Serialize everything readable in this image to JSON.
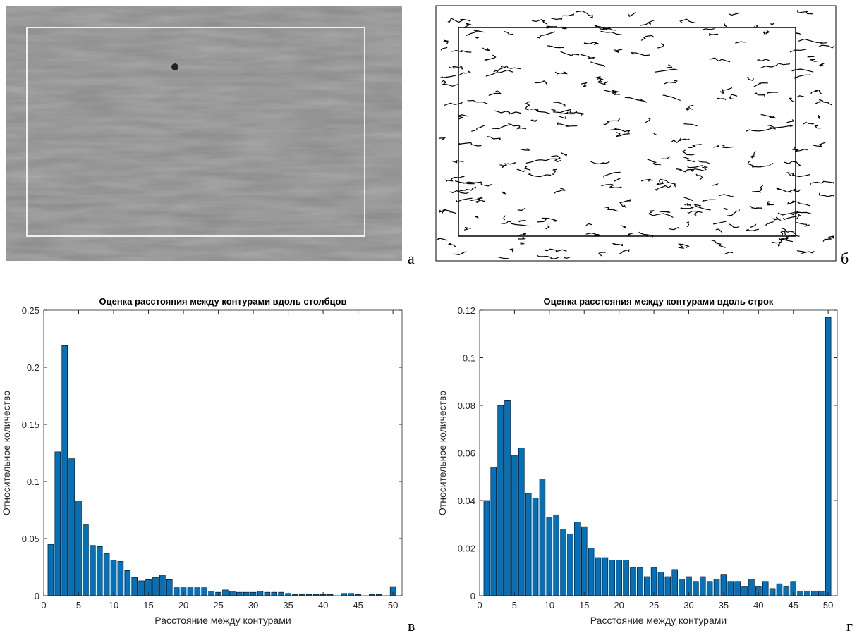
{
  "panel_labels": [
    "а",
    "б",
    "в",
    "г"
  ],
  "chart_data": [
    {
      "type": "bar",
      "title": "Оценка расстояния между контурами вдоль столбцов",
      "xlabel": "Расстояние между контурами",
      "ylabel": "Относительное количество",
      "color": "#0072bd",
      "x": [
        1,
        2,
        3,
        4,
        5,
        6,
        7,
        8,
        9,
        10,
        11,
        12,
        13,
        14,
        15,
        16,
        17,
        18,
        19,
        20,
        21,
        22,
        23,
        24,
        25,
        26,
        27,
        28,
        29,
        30,
        31,
        32,
        33,
        34,
        35,
        36,
        37,
        38,
        39,
        40,
        41,
        42,
        43,
        44,
        45,
        46,
        47,
        48,
        49,
        50
      ],
      "values": [
        0.045,
        0.126,
        0.219,
        0.12,
        0.083,
        0.062,
        0.044,
        0.043,
        0.037,
        0.031,
        0.03,
        0.022,
        0.016,
        0.013,
        0.014,
        0.016,
        0.018,
        0.014,
        0.007,
        0.007,
        0.007,
        0.007,
        0.007,
        0.004,
        0.003,
        0.005,
        0.004,
        0.003,
        0.003,
        0.003,
        0.004,
        0.003,
        0.003,
        0.003,
        0.002,
        0.001,
        0.001,
        0.001,
        0.001,
        0.001,
        0.001,
        0,
        0.002,
        0.002,
        0.001,
        0,
        0.001,
        0.001,
        0,
        0.008
      ],
      "xlim": [
        0,
        51.3
      ],
      "xticks": [
        0,
        5,
        10,
        15,
        20,
        25,
        30,
        35,
        40,
        45,
        50
      ],
      "ylim": [
        0,
        0.25
      ],
      "yticks": [
        0,
        0.05,
        0.1,
        0.15,
        0.2,
        0.25
      ]
    },
    {
      "type": "bar",
      "title": "Оценка расстояния между контурами вдоль строк",
      "xlabel": "Расстояние между контурами",
      "ylabel": "Относительное количество",
      "color": "#0072bd",
      "x": [
        1,
        2,
        3,
        4,
        5,
        6,
        7,
        8,
        9,
        10,
        11,
        12,
        13,
        14,
        15,
        16,
        17,
        18,
        19,
        20,
        21,
        22,
        23,
        24,
        25,
        26,
        27,
        28,
        29,
        30,
        31,
        32,
        33,
        34,
        35,
        36,
        37,
        38,
        39,
        40,
        41,
        42,
        43,
        44,
        45,
        46,
        47,
        48,
        49,
        50
      ],
      "values": [
        0.04,
        0.054,
        0.08,
        0.082,
        0.059,
        0.062,
        0.043,
        0.041,
        0.049,
        0.033,
        0.034,
        0.028,
        0.026,
        0.031,
        0.029,
        0.02,
        0.016,
        0.016,
        0.015,
        0.015,
        0.015,
        0.012,
        0.012,
        0.008,
        0.012,
        0.01,
        0.008,
        0.011,
        0.007,
        0.008,
        0.006,
        0.008,
        0.006,
        0.007,
        0.009,
        0.006,
        0.006,
        0.004,
        0.007,
        0.004,
        0.006,
        0.003,
        0.005,
        0.004,
        0.006,
        0.002,
        0.002,
        0.002,
        0.002,
        0.117
      ],
      "xlim": [
        0,
        51.3
      ],
      "xticks": [
        0,
        5,
        10,
        15,
        20,
        25,
        30,
        35,
        40,
        45,
        50
      ],
      "ylim": [
        0,
        0.12
      ],
      "yticks": [
        0,
        0.02,
        0.04,
        0.06,
        0.08,
        0.1,
        0.12
      ]
    }
  ]
}
